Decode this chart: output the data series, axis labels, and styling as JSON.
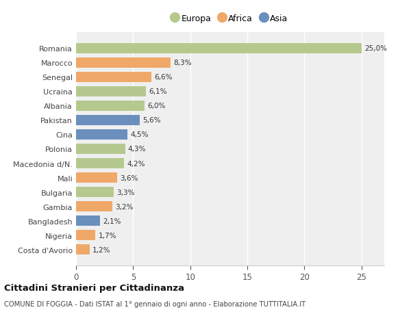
{
  "countries": [
    "Romania",
    "Marocco",
    "Senegal",
    "Ucraina",
    "Albania",
    "Pakistan",
    "Cina",
    "Polonia",
    "Macedonia d/N.",
    "Mali",
    "Bulgaria",
    "Gambia",
    "Bangladesh",
    "Nigeria",
    "Costa d'Avorio"
  ],
  "values": [
    25.0,
    8.3,
    6.6,
    6.1,
    6.0,
    5.6,
    4.5,
    4.3,
    4.2,
    3.6,
    3.3,
    3.2,
    2.1,
    1.7,
    1.2
  ],
  "labels": [
    "25,0%",
    "8,3%",
    "6,6%",
    "6,1%",
    "6,0%",
    "5,6%",
    "4,5%",
    "4,3%",
    "4,2%",
    "3,6%",
    "3,3%",
    "3,2%",
    "2,1%",
    "1,7%",
    "1,2%"
  ],
  "continents": [
    "Europa",
    "Africa",
    "Africa",
    "Europa",
    "Europa",
    "Asia",
    "Asia",
    "Europa",
    "Europa",
    "Africa",
    "Europa",
    "Africa",
    "Asia",
    "Africa",
    "Africa"
  ],
  "colors": {
    "Europa": "#b5c98e",
    "Africa": "#f0a868",
    "Asia": "#6b8fbd"
  },
  "legend_order": [
    "Europa",
    "Africa",
    "Asia"
  ],
  "title": "Cittadini Stranieri per Cittadinanza",
  "subtitle": "COMUNE DI FOGGIA - Dati ISTAT al 1° gennaio di ogni anno - Elaborazione TUTTITALIA.IT",
  "xlim": [
    0,
    27
  ],
  "xticks": [
    0,
    5,
    10,
    15,
    20,
    25
  ],
  "background_color": "#ffffff",
  "plot_background": "#efefef",
  "grid_color": "#ffffff"
}
